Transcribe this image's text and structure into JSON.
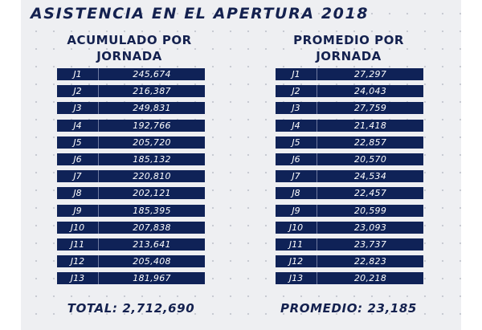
{
  "title": "ASISTENCIA EN EL APERTURA 2018",
  "colors": {
    "panel": "#eeeff2",
    "row_fill": "#0f2257",
    "text_dark": "#14214f",
    "row_text": "#ffffff"
  },
  "left": {
    "heading": [
      "ACUMULADO POR",
      "JORNADA"
    ],
    "footer": "TOTAL: 2,712,690"
  },
  "right": {
    "heading": [
      "PROMEDIO POR",
      "JORNADA"
    ],
    "footer": "PROMEDIO: 23,185"
  },
  "chart_data": [
    {
      "type": "table",
      "title": "ACUMULADO POR JORNADA",
      "columns": [
        "",
        ""
      ],
      "rows": [
        [
          "J1",
          "245,674"
        ],
        [
          "J2",
          "216,387"
        ],
        [
          "J3",
          "249,831"
        ],
        [
          "J4",
          "192,766"
        ],
        [
          "J5",
          "205,720"
        ],
        [
          "J6",
          "185,132"
        ],
        [
          "J7",
          "220,810"
        ],
        [
          "J8",
          "202,121"
        ],
        [
          "J9",
          "185,395"
        ],
        [
          "J10",
          "207,838"
        ],
        [
          "J11",
          "213,641"
        ],
        [
          "J12",
          "205,408"
        ],
        [
          "J13",
          "181,967"
        ]
      ]
    },
    {
      "type": "table",
      "title": "PROMEDIO POR JORNADA",
      "columns": [
        "",
        ""
      ],
      "rows": [
        [
          "J1",
          "27,297"
        ],
        [
          "J2",
          "24,043"
        ],
        [
          "J3",
          "27,759"
        ],
        [
          "J4",
          "21,418"
        ],
        [
          "J5",
          "22,857"
        ],
        [
          "J6",
          "20,570"
        ],
        [
          "J7",
          "24,534"
        ],
        [
          "J8",
          "22,457"
        ],
        [
          "J9",
          "20,599"
        ],
        [
          "J10",
          "23,093"
        ],
        [
          "J11",
          "23,737"
        ],
        [
          "J12",
          "22,823"
        ],
        [
          "J13",
          "20,218"
        ]
      ]
    }
  ]
}
